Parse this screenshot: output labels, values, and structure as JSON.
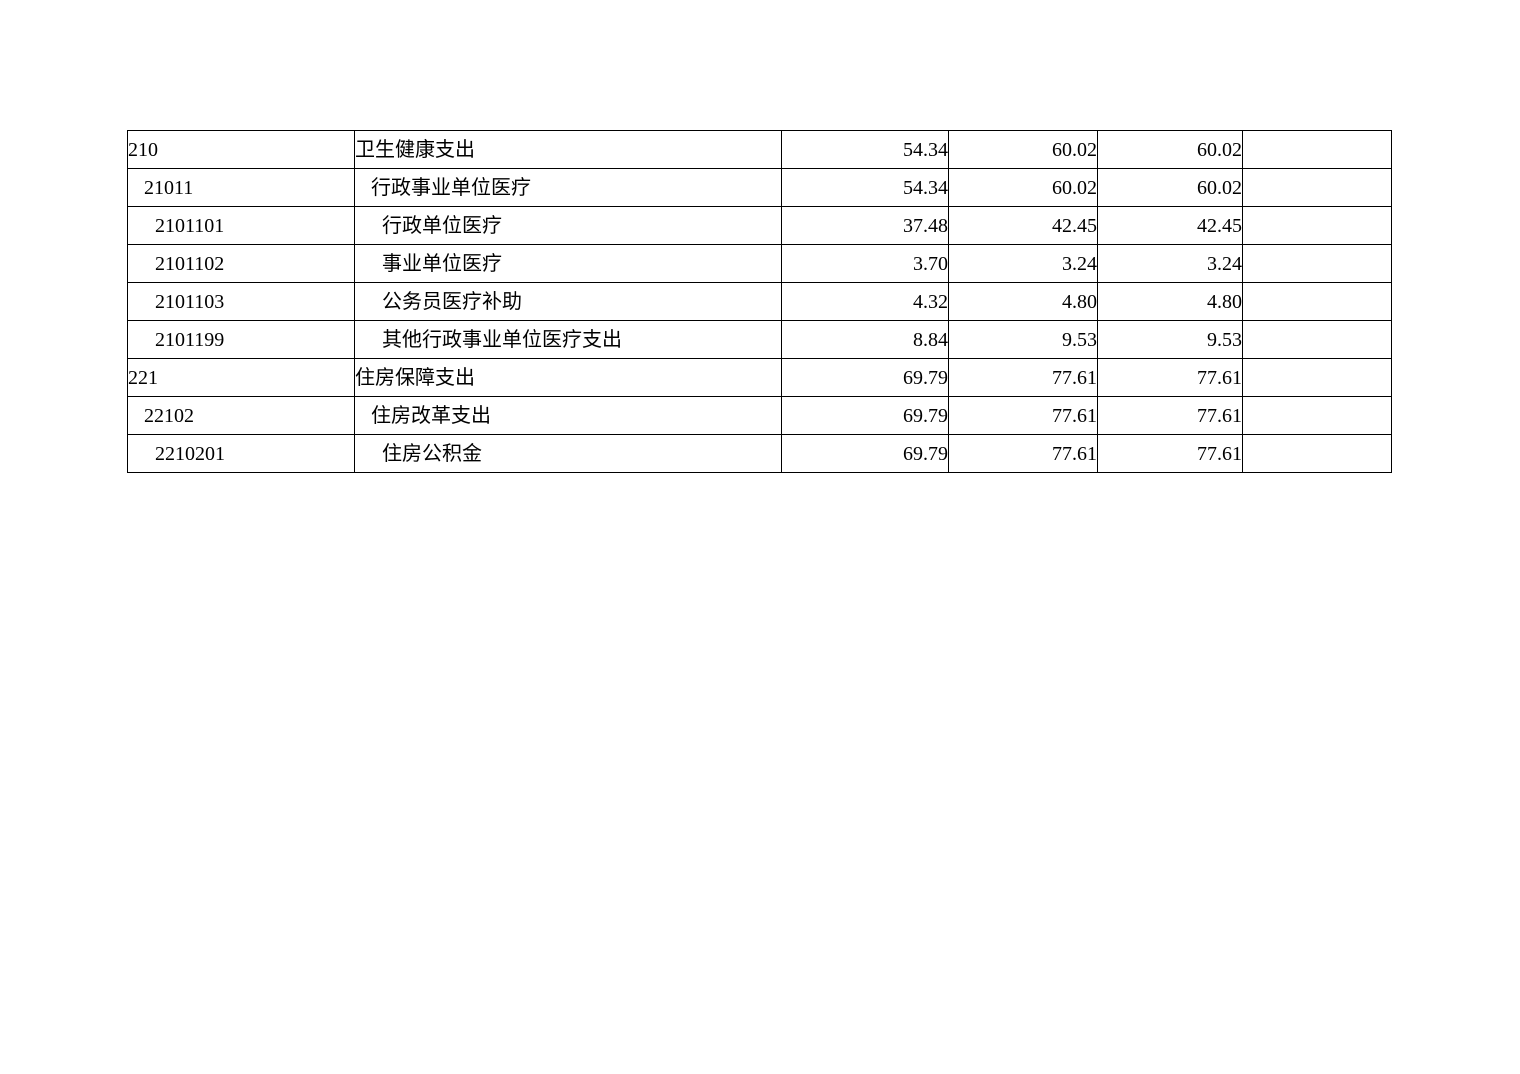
{
  "page": {
    "background_color": "#ffffff",
    "text_color": "#000000",
    "table_border_color": "#000000"
  },
  "table": {
    "rows": [
      {
        "code": "210",
        "name": "卫生健康支出",
        "level": 0,
        "v1": "54.34",
        "v2": "60.02",
        "v3": "60.02",
        "note": ""
      },
      {
        "code": "21011",
        "name": "行政事业单位医疗",
        "level": 1,
        "v1": "54.34",
        "v2": "60.02",
        "v3": "60.02",
        "note": ""
      },
      {
        "code": "2101101",
        "name": "行政单位医疗",
        "level": 2,
        "v1": "37.48",
        "v2": "42.45",
        "v3": "42.45",
        "note": ""
      },
      {
        "code": "2101102",
        "name": "事业单位医疗",
        "level": 2,
        "v1": "3.70",
        "v2": "3.24",
        "v3": "3.24",
        "note": ""
      },
      {
        "code": "2101103",
        "name": "公务员医疗补助",
        "level": 2,
        "v1": "4.32",
        "v2": "4.80",
        "v3": "4.80",
        "note": ""
      },
      {
        "code": "2101199",
        "name": "其他行政事业单位医疗支出",
        "level": 2,
        "v1": "8.84",
        "v2": "9.53",
        "v3": "9.53",
        "note": ""
      },
      {
        "code": "221",
        "name": "住房保障支出",
        "level": 0,
        "v1": "69.79",
        "v2": "77.61",
        "v3": "77.61",
        "note": ""
      },
      {
        "code": "22102",
        "name": "住房改革支出",
        "level": 1,
        "v1": "69.79",
        "v2": "77.61",
        "v3": "77.61",
        "note": ""
      },
      {
        "code": "2210201",
        "name": "住房公积金",
        "level": 2,
        "v1": "69.79",
        "v2": "77.61",
        "v3": "77.61",
        "note": ""
      }
    ]
  },
  "chart_data": {
    "type": "table",
    "columns": [
      "code",
      "item_name",
      "value_1",
      "value_2",
      "value_3",
      "note"
    ],
    "rows": [
      [
        "210",
        "卫生健康支出",
        54.34,
        60.02,
        60.02,
        ""
      ],
      [
        "21011",
        "行政事业单位医疗",
        54.34,
        60.02,
        60.02,
        ""
      ],
      [
        "2101101",
        "行政单位医疗",
        37.48,
        42.45,
        42.45,
        ""
      ],
      [
        "2101102",
        "事业单位医疗",
        3.7,
        3.24,
        3.24,
        ""
      ],
      [
        "2101103",
        "公务员医疗补助",
        4.32,
        4.8,
        4.8,
        ""
      ],
      [
        "2101199",
        "其他行政事业单位医疗支出",
        8.84,
        9.53,
        9.53,
        ""
      ],
      [
        "221",
        "住房保障支出",
        69.79,
        77.61,
        77.61,
        ""
      ],
      [
        "22102",
        "住房改革支出",
        69.79,
        77.61,
        77.61,
        ""
      ],
      [
        "2210201",
        "住房公积金",
        69.79,
        77.61,
        77.61,
        ""
      ]
    ]
  }
}
